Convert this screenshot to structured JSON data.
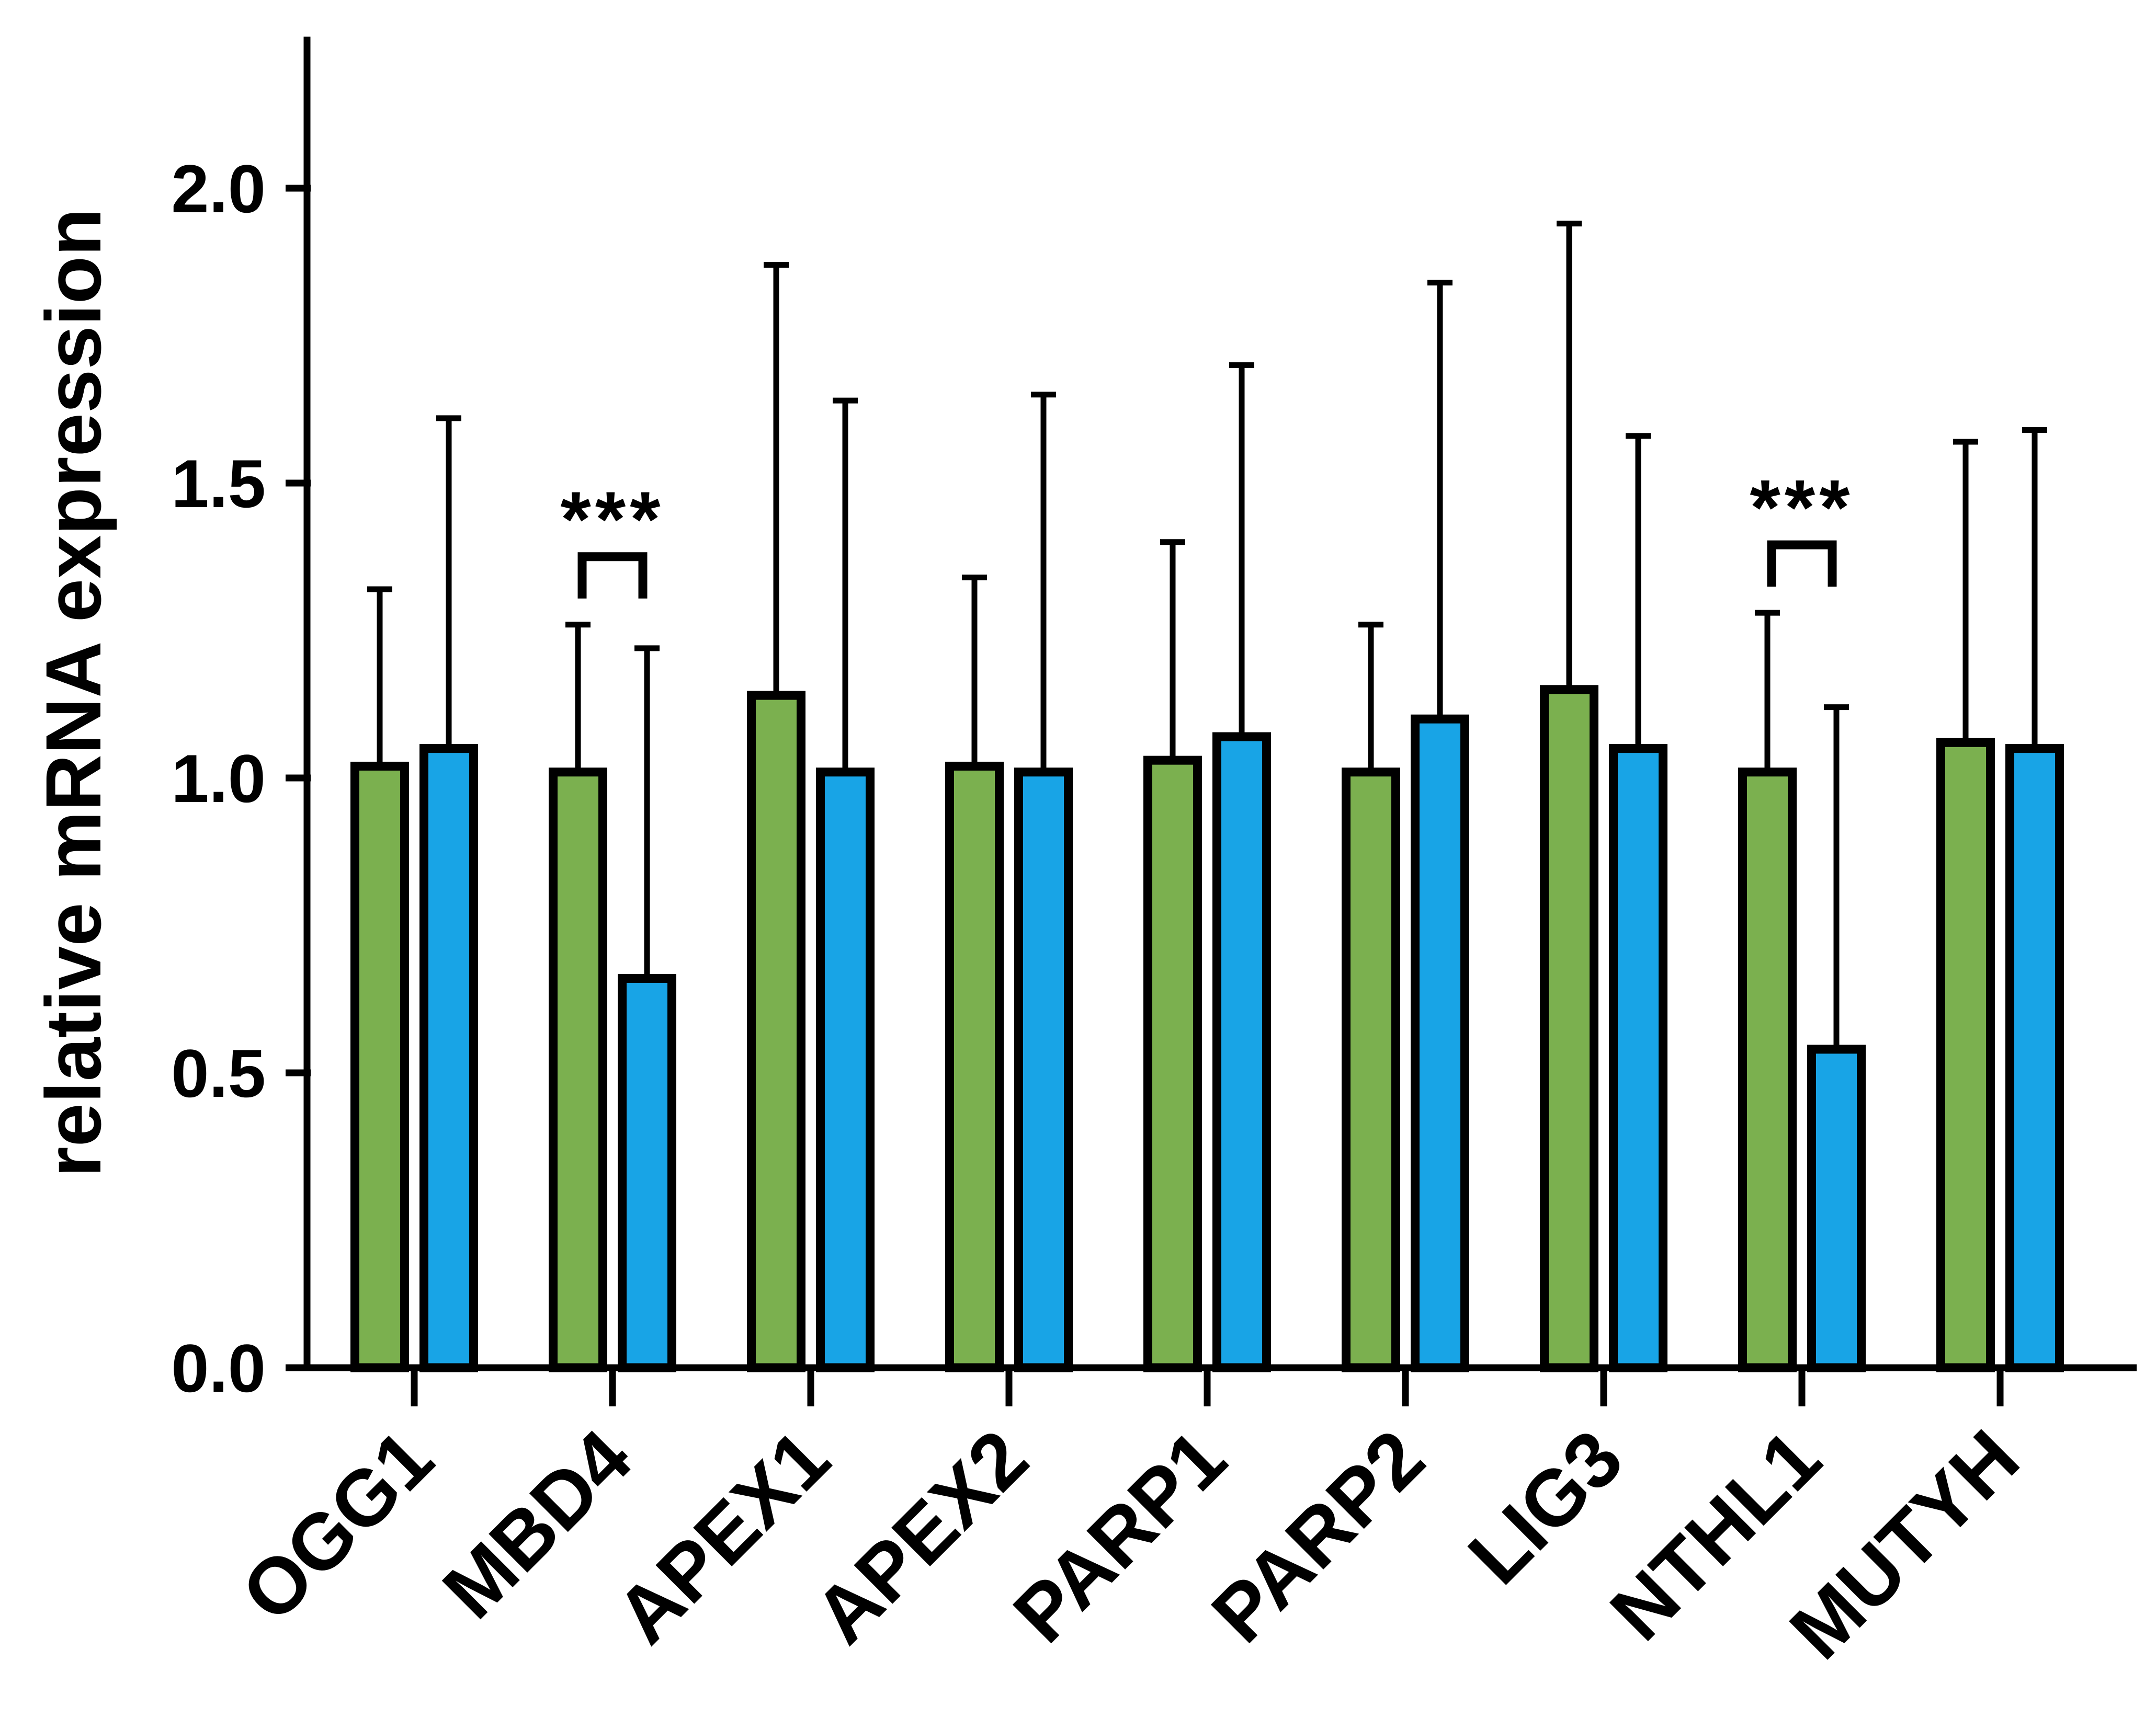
{
  "chart_data": {
    "type": "bar",
    "title": "",
    "xlabel": "",
    "ylabel": "relative mRNA expression",
    "ylim": [
      0,
      2.25
    ],
    "yticks": [
      "0.0",
      "0.5",
      "1.0",
      "1.5",
      "2.0"
    ],
    "ytick_values": [
      0,
      0.5,
      1.0,
      1.5,
      2.0
    ],
    "categories": [
      "OGG1",
      "MBD4",
      "APEX1",
      "APEX2",
      "PARP1",
      "PARP2",
      "LIG3",
      "NTHL1",
      "MUTYH"
    ],
    "series": [
      {
        "name": "green",
        "color": "#7bb04f",
        "values": [
          1.02,
          1.01,
          1.14,
          1.02,
          1.03,
          1.01,
          1.15,
          1.01,
          1.06
        ],
        "error_upper": [
          1.32,
          1.26,
          1.87,
          1.34,
          1.4,
          1.26,
          1.94,
          1.28,
          1.57
        ]
      },
      {
        "name": "blue",
        "color": "#18a4e6",
        "values": [
          1.05,
          0.66,
          1.01,
          1.01,
          1.07,
          1.1,
          1.05,
          0.54,
          1.05
        ],
        "error_upper": [
          1.61,
          1.22,
          1.64,
          1.65,
          1.7,
          1.84,
          1.58,
          1.12,
          1.59
        ]
      }
    ],
    "annotations": [
      {
        "category": "MBD4",
        "text": "***"
      },
      {
        "category": "NTHL1",
        "text": "***"
      }
    ],
    "legend": "none"
  }
}
